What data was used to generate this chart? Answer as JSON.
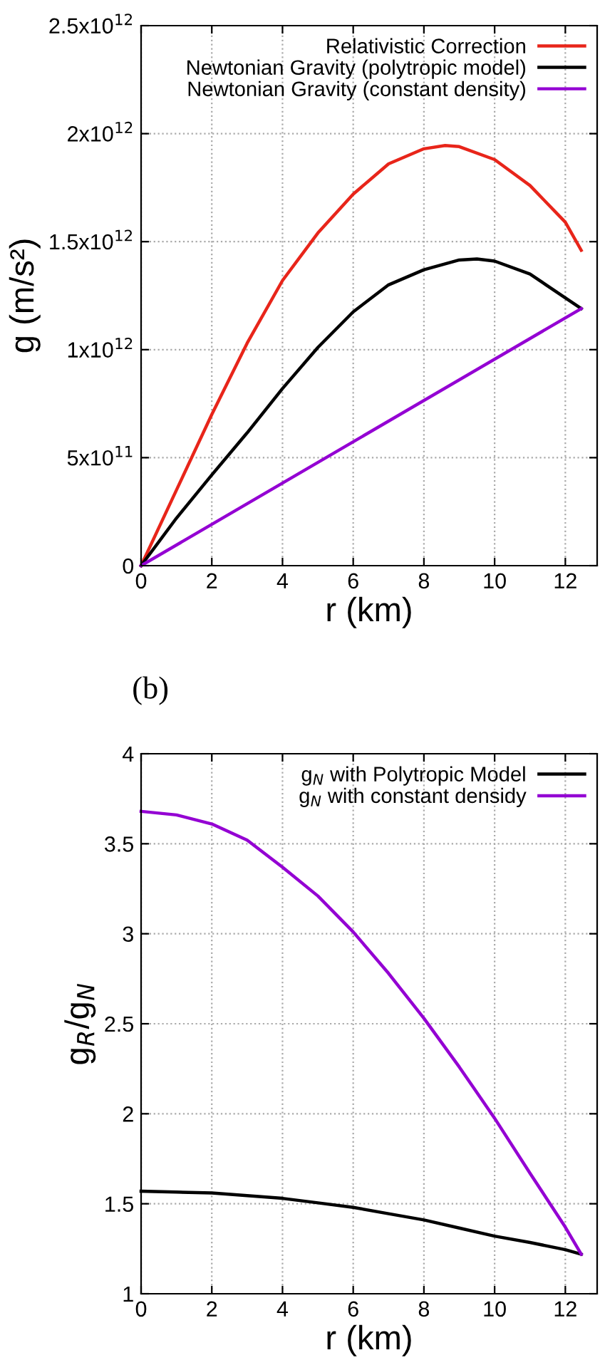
{
  "chart_data": [
    {
      "type": "line",
      "xlabel": "r (km)",
      "ylabel": "g (m/s²)",
      "xlim": [
        0,
        12.9
      ],
      "ylim": [
        0,
        2500000000000.0
      ],
      "xticks": [
        0,
        2,
        4,
        6,
        8,
        10,
        12
      ],
      "yticks": [
        {
          "value": 0,
          "label": "0"
        },
        {
          "value": 500000000000.0,
          "label": "5x10$^{11}$"
        },
        {
          "value": 1000000000000.0,
          "label": "1x10$^{12}$"
        },
        {
          "value": 1500000000000.0,
          "label": "1.5x10$^{12}$"
        },
        {
          "value": 2000000000000.0,
          "label": "2x10$^{12}$"
        },
        {
          "value": 2500000000000.0,
          "label": "2.5x10$^{12}$"
        }
      ],
      "grid": true,
      "legend": "top right",
      "line_style": "solid",
      "marker": "none",
      "series": [
        {
          "name": "Relativistic Correction",
          "color": "#e8251a",
          "x": [
            0,
            1,
            2,
            3,
            4,
            5,
            6,
            7,
            8,
            8.6,
            9,
            10,
            11,
            12,
            12.45
          ],
          "values": [
            0,
            350000000000.0,
            700000000000.0,
            1030000000000.0,
            1320000000000.0,
            1540000000000.0,
            1720000000000.0,
            1860000000000.0,
            1930000000000.0,
            1945000000000.0,
            1940000000000.0,
            1880000000000.0,
            1760000000000.0,
            1590000000000.0,
            1460000000000.0
          ]
        },
        {
          "name": "Newtonian Gravity (polytropic model)",
          "color": "#000000",
          "x": [
            0,
            1,
            2,
            3,
            4,
            5,
            6,
            7,
            8,
            9,
            9.5,
            10,
            11,
            12,
            12.45
          ],
          "values": [
            0,
            220000000000.0,
            420000000000.0,
            615000000000.0,
            820000000000.0,
            1010000000000.0,
            1175000000000.0,
            1300000000000.0,
            1370000000000.0,
            1415000000000.0,
            1420000000000.0,
            1410000000000.0,
            1350000000000.0,
            1240000000000.0,
            1190000000000.0
          ]
        },
        {
          "name": "Newtonian Gravity (constant density)",
          "color": "#9400d3",
          "x": [
            0,
            12.45
          ],
          "values": [
            0,
            1190000000000.0
          ]
        }
      ]
    },
    {
      "type": "line",
      "title": "(b)",
      "xlabel": "r (km)",
      "ylabel": "g$_{R}$/g$_{N}$",
      "xlim": [
        0,
        12.9
      ],
      "ylim": [
        1,
        4
      ],
      "xticks": [
        0,
        2,
        4,
        6,
        8,
        10,
        12
      ],
      "yticks": [
        1,
        1.5,
        2,
        2.5,
        3,
        3.5,
        4
      ],
      "grid": true,
      "legend": "top right",
      "line_style": "solid",
      "marker": "none",
      "series": [
        {
          "name": "g$_{N}$ with Polytropic Model",
          "color": "#000000",
          "x": [
            0,
            1,
            2,
            3,
            4,
            5,
            6,
            7,
            8,
            9,
            10,
            11,
            12,
            12.45
          ],
          "values": [
            1.57,
            1.565,
            1.56,
            1.545,
            1.53,
            1.505,
            1.48,
            1.445,
            1.41,
            1.365,
            1.32,
            1.285,
            1.245,
            1.22
          ]
        },
        {
          "name": "g$_{N}$ with constant densidy",
          "color": "#9400d3",
          "x": [
            0,
            1,
            2,
            3,
            4,
            5,
            6,
            7,
            8,
            9,
            10,
            11,
            12,
            12.45
          ],
          "values": [
            3.68,
            3.66,
            3.61,
            3.52,
            3.37,
            3.21,
            3.01,
            2.78,
            2.53,
            2.26,
            1.975,
            1.67,
            1.37,
            1.22
          ]
        }
      ]
    }
  ]
}
